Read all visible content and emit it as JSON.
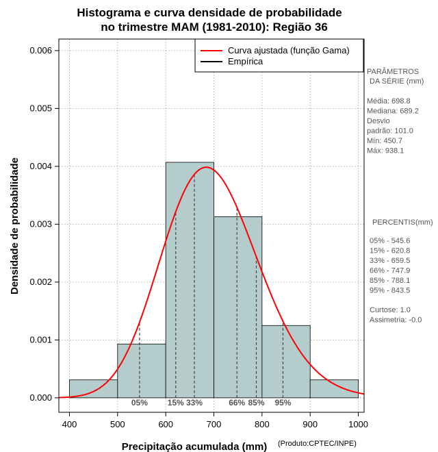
{
  "chart_data": {
    "type": "histogram",
    "title_line1": "Histograma e curva densidade de probabilidade",
    "title_line2": "no trimestre MAM (1981-2010): Região 36",
    "xlabel": "Precipitação acumulada (mm)",
    "ylabel": "Densidade de probabilidade",
    "credit": "(Produto:CPTEC/INPE)",
    "xlim": [
      378,
      1012
    ],
    "ylim": [
      -0.00025,
      0.0062
    ],
    "x_ticks": [
      400,
      500,
      600,
      700,
      800,
      900,
      1000
    ],
    "x_tick_labels": [
      "400",
      "500",
      "600",
      "700",
      "800",
      "900",
      "1000"
    ],
    "y_ticks": [
      0.0,
      0.001,
      0.002,
      0.003,
      0.004,
      0.005,
      0.006
    ],
    "y_tick_labels": [
      "0.000",
      "0.001",
      "0.002",
      "0.003",
      "0.004",
      "0.005",
      "0.006"
    ],
    "grid": true,
    "bars": [
      {
        "x0": 400,
        "x1": 500,
        "density": 0.00031
      },
      {
        "x0": 500,
        "x1": 600,
        "density": 0.00093
      },
      {
        "x0": 600,
        "x1": 700,
        "density": 0.00407
      },
      {
        "x0": 700,
        "x1": 800,
        "density": 0.00313
      },
      {
        "x0": 800,
        "x1": 900,
        "density": 0.00125
      },
      {
        "x0": 900,
        "x1": 1000,
        "density": 0.00031
      }
    ],
    "fitted_curve": {
      "name": "Curva ajustada (função Gama)",
      "distribution": "gamma",
      "mean": 698.8,
      "sd": 101.0,
      "color": "#ff0000"
    },
    "empirical_name": "Empírica",
    "percentiles": [
      {
        "label": "05%",
        "value": 545.6
      },
      {
        "label": "15%",
        "value": 620.8
      },
      {
        "label": "33%",
        "value": 659.5
      },
      {
        "label": "66%",
        "value": 747.9
      },
      {
        "label": "85%",
        "value": 788.1
      },
      {
        "label": "95%",
        "value": 843.5
      }
    ],
    "legend_position": "top-right",
    "bar_fill": "#b4cccc"
  },
  "sidebar": {
    "params_title_1": "PARÂMETROS",
    "params_title_2": "DA SÉRIE (mm)",
    "params": [
      "Média:  698.8",
      "Mediana:  689.2",
      "Desvio",
      "padrão:  101.0",
      "Mín:  450.7",
      "Máx:  938.1"
    ],
    "percentis_title": "PERCENTIS(mm)",
    "percentis": [
      "05% -   545.6",
      "15% -   620.8",
      "33% -   659.5",
      "66% -   747.9",
      "85% -   788.1",
      "95% -   843.5"
    ],
    "extra": [
      "Curtose:  1.0",
      "Assimetria:  -0.0"
    ]
  }
}
